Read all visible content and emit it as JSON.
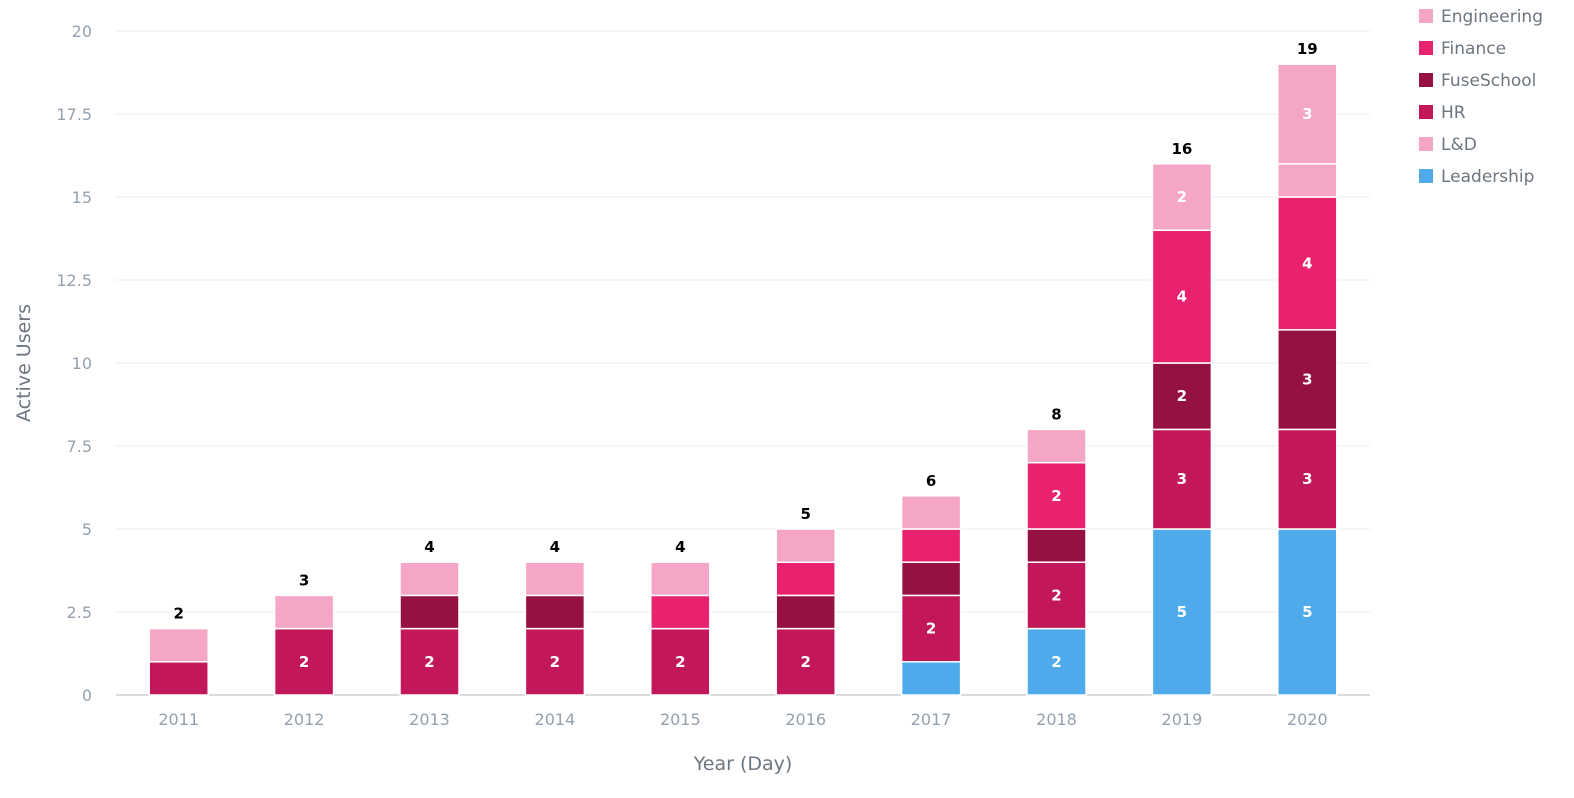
{
  "chart_data": {
    "type": "bar",
    "stacked": true,
    "xlabel": "Year (Day)",
    "ylabel": "Active Users",
    "ylim": [
      0,
      20
    ],
    "yticks": [
      "0",
      "2.5",
      "5",
      "7.5",
      "10",
      "12.5",
      "15",
      "17.5",
      "20"
    ],
    "ytick_values": [
      0,
      2.5,
      5,
      7.5,
      10,
      12.5,
      15,
      17.5,
      20
    ],
    "grid": true,
    "legend_position": "top-right",
    "categories": [
      "2011",
      "2012",
      "2013",
      "2014",
      "2015",
      "2016",
      "2017",
      "2018",
      "2019",
      "2020"
    ],
    "totals": [
      "2",
      "3",
      "4",
      "4",
      "4",
      "5",
      "6",
      "8",
      "16",
      "19"
    ],
    "series": [
      {
        "name": "Leadership",
        "color": "#4eaaeb",
        "values": [
          0,
          0,
          0,
          0,
          0,
          0,
          1,
          2,
          5,
          5
        ]
      },
      {
        "name": "HR",
        "color": "#c2185b",
        "values": [
          1,
          2,
          2,
          2,
          2,
          2,
          2,
          2,
          3,
          3
        ]
      },
      {
        "name": "FuseSchool",
        "color": "#961143",
        "values": [
          0,
          0,
          1,
          1,
          0,
          1,
          1,
          1,
          2,
          3
        ]
      },
      {
        "name": "Finance",
        "color": "#e9226f",
        "values": [
          0,
          0,
          0,
          0,
          1,
          1,
          1,
          2,
          4,
          4
        ]
      },
      {
        "name": "L&D",
        "color": "#f5a6c6",
        "values": [
          1,
          1,
          1,
          1,
          1,
          1,
          1,
          1,
          2,
          1
        ]
      },
      {
        "name": "Engineering",
        "color": "#f5a6c6",
        "values": [
          0,
          0,
          0,
          0,
          0,
          0,
          0,
          0,
          0,
          3
        ]
      }
    ],
    "legend_order": [
      "Engineering",
      "Finance",
      "FuseSchool",
      "HR",
      "L&D",
      "Leadership"
    ]
  }
}
